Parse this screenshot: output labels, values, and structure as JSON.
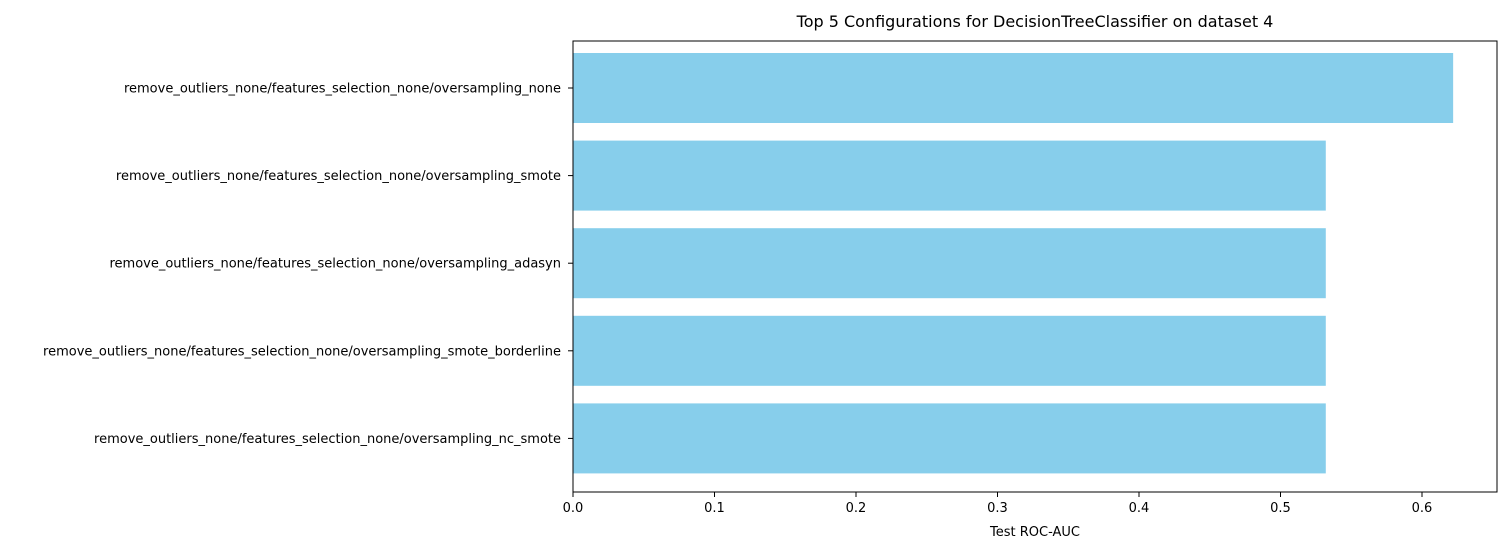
{
  "chart_data": {
    "type": "bar",
    "orientation": "horizontal",
    "title": "Top 5 Configurations for DecisionTreeClassifier on dataset 4",
    "xlabel": "Test ROC-AUC",
    "ylabel": "",
    "categories": [
      "remove_outliers_none/features_selection_none/oversampling_none",
      "remove_outliers_none/features_selection_none/oversampling_smote",
      "remove_outliers_none/features_selection_none/oversampling_adasyn",
      "remove_outliers_none/features_selection_none/oversampling_smote_borderline",
      "remove_outliers_none/features_selection_none/oversampling_nc_smote"
    ],
    "values": [
      0.622,
      0.532,
      0.532,
      0.532,
      0.532
    ],
    "xlim": [
      0,
      0.653
    ],
    "xticks": [
      0.0,
      0.1,
      0.2,
      0.3,
      0.4,
      0.5,
      0.6
    ],
    "xtick_labels": [
      "0.0",
      "0.1",
      "0.2",
      "0.3",
      "0.4",
      "0.5",
      "0.6"
    ],
    "grid": false,
    "legend": "none",
    "bar_color": "#87CEEB"
  }
}
